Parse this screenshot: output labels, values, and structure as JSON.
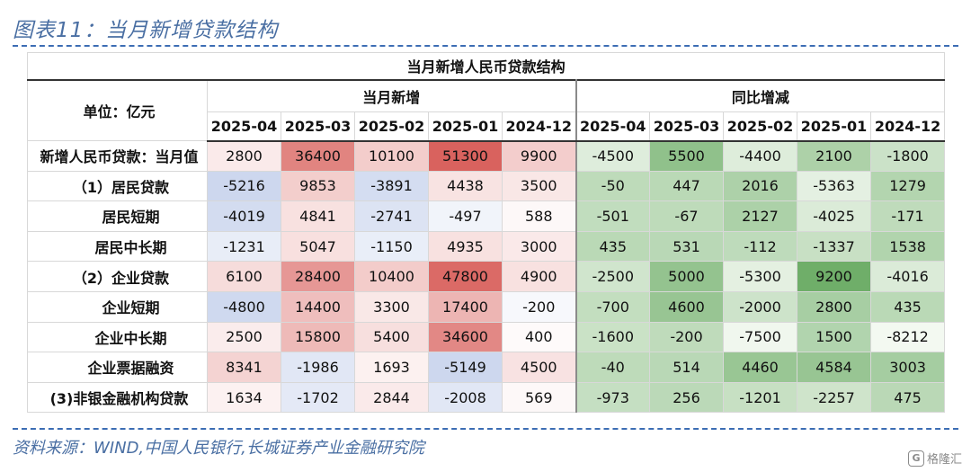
{
  "figure_title": "图表11：当月新增贷款结构",
  "table": {
    "title": "当月新增人民币贷款结构",
    "unit_label": "单位：亿元",
    "group_new": "当月新增",
    "group_yoy": "同比增减",
    "months": [
      "2025-04",
      "2025-03",
      "2025-02",
      "2025-01",
      "2024-12"
    ],
    "rows": [
      {
        "label": "新增人民币贷款：当月值",
        "indent": 0,
        "new": [
          "2800",
          "36400",
          "10100",
          "51300",
          "9900"
        ],
        "yoy": [
          "-4500",
          "5500",
          "-4400",
          "2100",
          "-1800"
        ]
      },
      {
        "label": "（1）居民贷款",
        "indent": 1,
        "new": [
          "-5216",
          "9853",
          "-3891",
          "4438",
          "3500"
        ],
        "yoy": [
          "-50",
          "447",
          "2016",
          "-5363",
          "1279"
        ]
      },
      {
        "label": "居民短期",
        "indent": 2,
        "new": [
          "-4019",
          "4841",
          "-2741",
          "-497",
          "588"
        ],
        "yoy": [
          "-501",
          "-67",
          "2127",
          "-4025",
          "-171"
        ]
      },
      {
        "label": "居民中长期",
        "indent": 2,
        "new": [
          "-1231",
          "5047",
          "-1150",
          "4935",
          "3000"
        ],
        "yoy": [
          "435",
          "531",
          "-112",
          "-1337",
          "1538"
        ]
      },
      {
        "label": "（2）企业贷款",
        "indent": 1,
        "new": [
          "6100",
          "28400",
          "10400",
          "47800",
          "4900"
        ],
        "yoy": [
          "-2500",
          "5000",
          "-5300",
          "9200",
          "-4016"
        ]
      },
      {
        "label": "企业短期",
        "indent": 2,
        "new": [
          "-4800",
          "14400",
          "3300",
          "17400",
          "-200"
        ],
        "yoy": [
          "-700",
          "4600",
          "-2000",
          "2800",
          "435"
        ]
      },
      {
        "label": "企业中长期",
        "indent": 2,
        "new": [
          "2500",
          "15800",
          "5400",
          "34600",
          "400"
        ],
        "yoy": [
          "-1600",
          "-200",
          "-7500",
          "1500",
          "-8212"
        ]
      },
      {
        "label": "企业票据融资",
        "indent": 2,
        "new": [
          "8341",
          "-1986",
          "1693",
          "-5149",
          "4500"
        ],
        "yoy": [
          "-40",
          "514",
          "4460",
          "4584",
          "3003"
        ]
      },
      {
        "label": "(3)非银金融机构贷款",
        "indent": 0,
        "new": [
          "1634",
          "-1702",
          "2844",
          "-2008",
          "569"
        ],
        "yoy": [
          "-973",
          "256",
          "-1201",
          "-2257",
          "475"
        ]
      }
    ]
  },
  "source": "资料来源：WIND,中国人民银行,长城证券产业金融研究院",
  "watermark": "格隆汇",
  "watermark_icon": "logo-icon",
  "colors": {
    "title_blue": "#4a6fa3",
    "heat_red": "#d9534f",
    "heat_blue": "#4a6fc0",
    "heat_green": "#6aaa64"
  }
}
